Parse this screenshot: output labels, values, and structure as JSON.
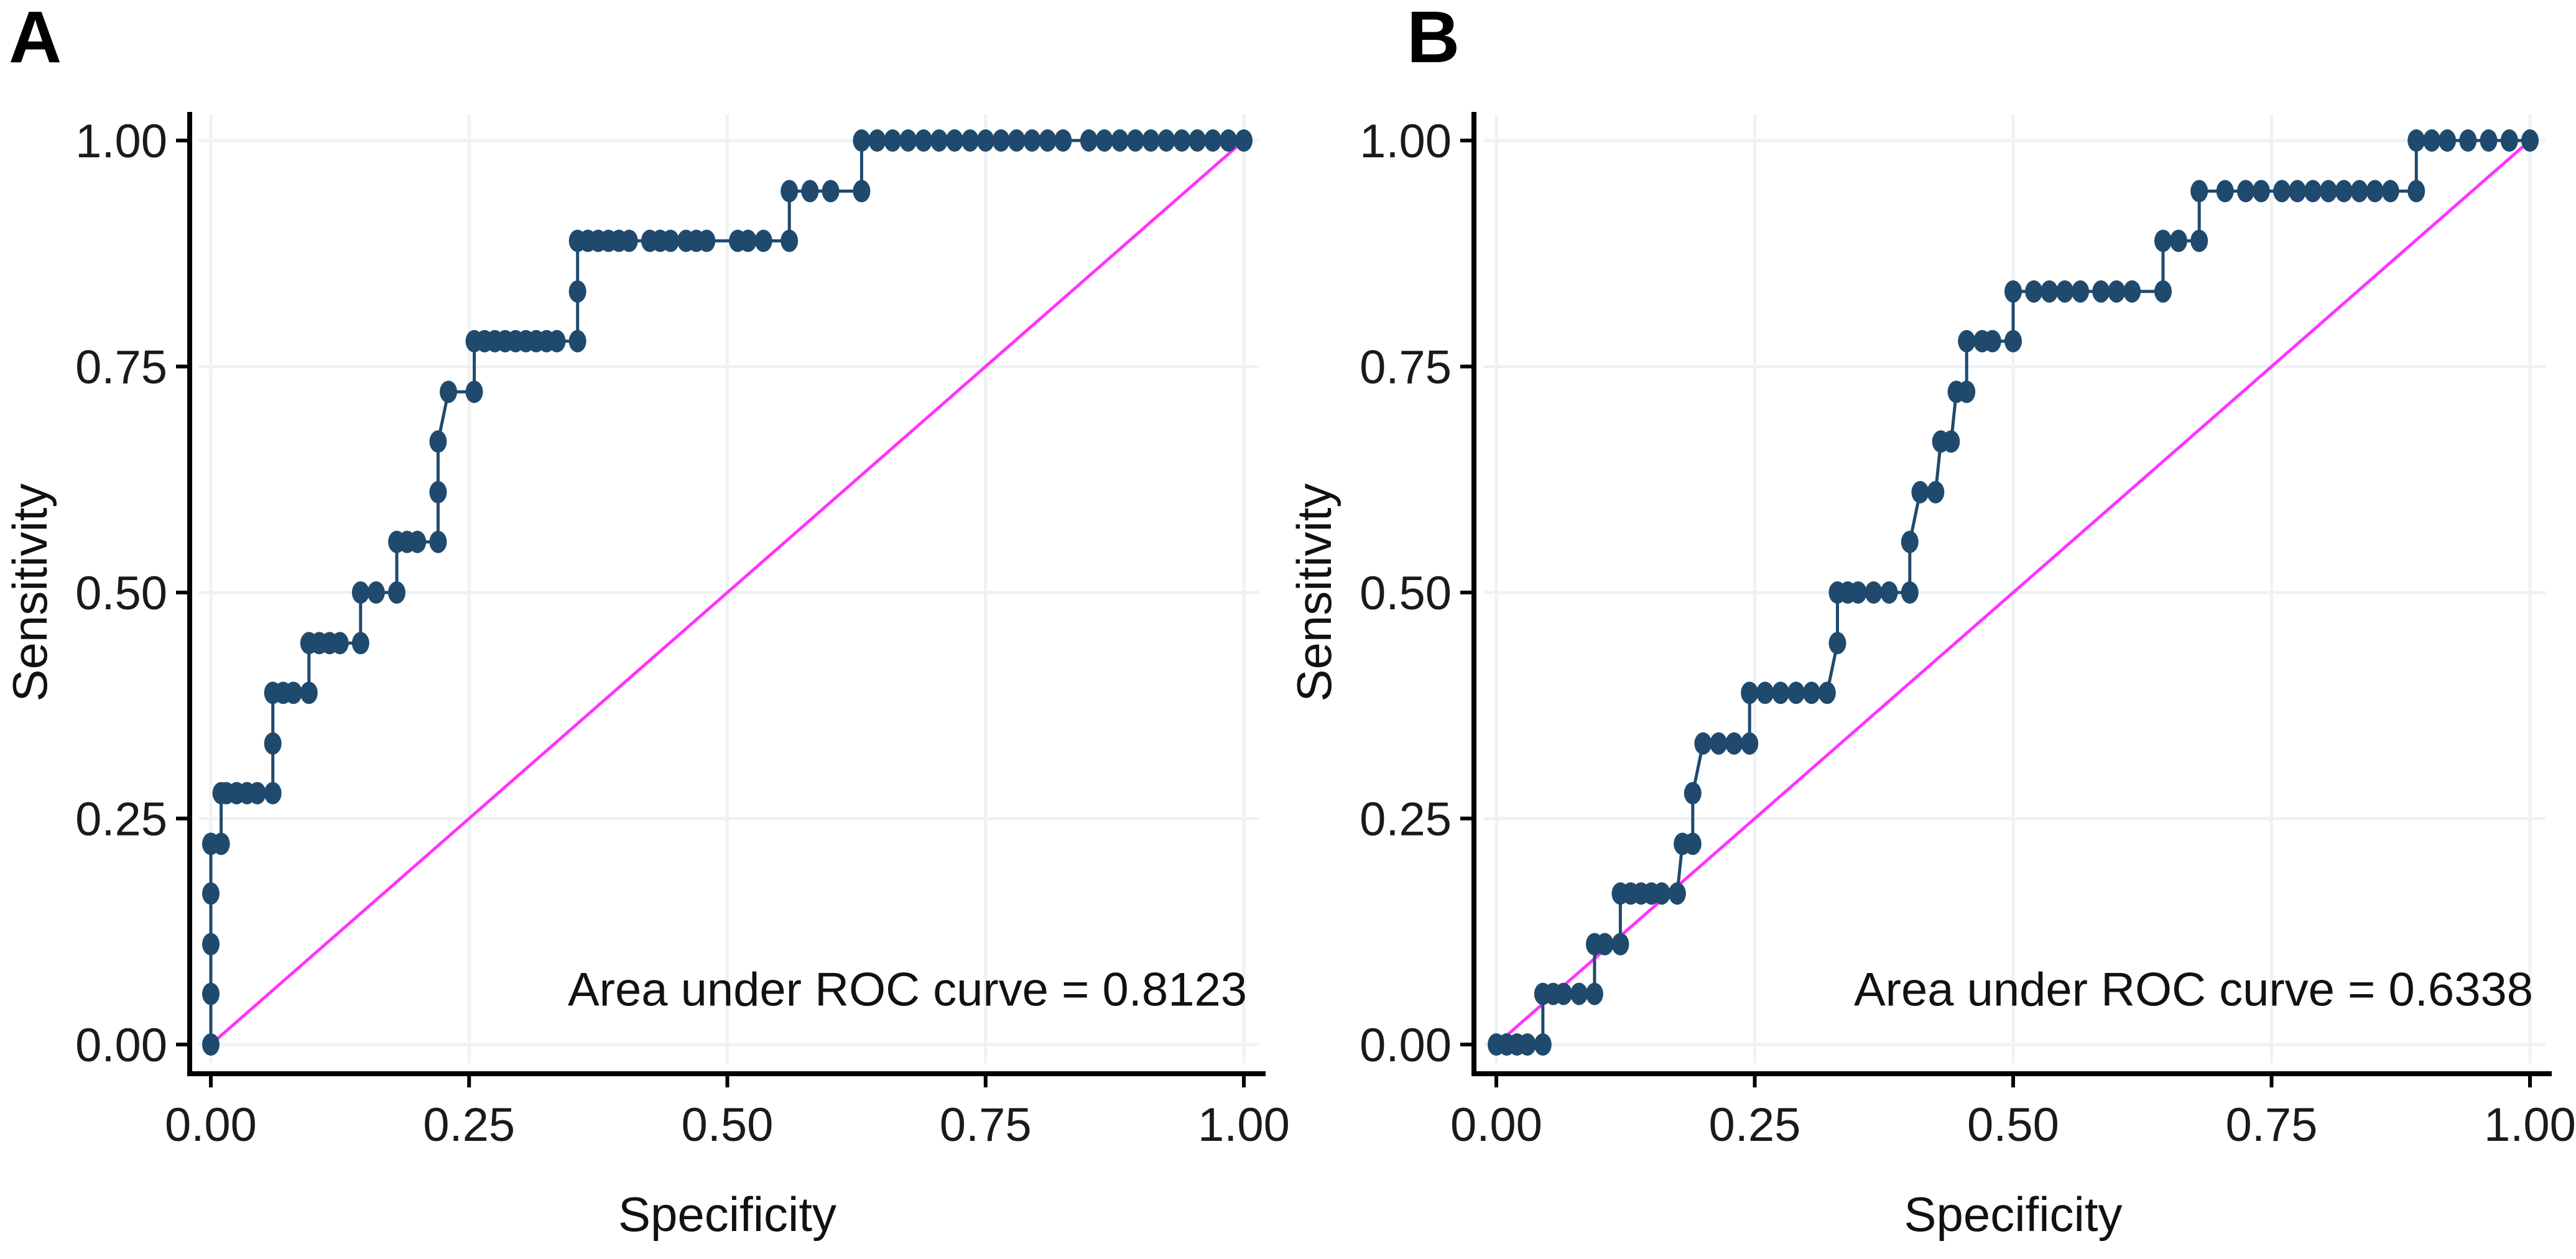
{
  "colors": {
    "curve": "#1f4a6e",
    "diagonal": "#ff33ff"
  },
  "chart_data": [
    {
      "panel": "A",
      "type": "line",
      "title": "",
      "xlabel": "Specificity",
      "ylabel": "Sensitivity",
      "xlim": [
        0,
        1
      ],
      "ylim": [
        0,
        1
      ],
      "xticks": [
        0,
        0.25,
        0.5,
        0.75,
        1
      ],
      "xtick_labels": [
        "0.00",
        "0.25",
        "0.50",
        "0.75",
        "1.00"
      ],
      "yticks": [
        0,
        0.25,
        0.5,
        0.75,
        1
      ],
      "ytick_labels": [
        "0.00",
        "0.25",
        "0.50",
        "0.75",
        "1.00"
      ],
      "grid": true,
      "annotation": "Area under ROC curve = 0.8123",
      "auc": 0.8123,
      "reference_line": {
        "from": [
          0,
          0
        ],
        "to": [
          1,
          1
        ]
      },
      "series": [
        {
          "name": "ROC",
          "x": [
            0,
            0,
            0,
            0,
            0,
            0,
            0.01,
            0.01,
            0.015,
            0.025,
            0.035,
            0.045,
            0.06,
            0.06,
            0.06,
            0.07,
            0.08,
            0.095,
            0.095,
            0.105,
            0.115,
            0.125,
            0.145,
            0.145,
            0.16,
            0.18,
            0.18,
            0.19,
            0.2,
            0.22,
            0.22,
            0.22,
            0.23,
            0.255,
            0.255,
            0.265,
            0.275,
            0.285,
            0.295,
            0.305,
            0.315,
            0.325,
            0.335,
            0.355,
            0.355,
            0.355,
            0.365,
            0.375,
            0.385,
            0.395,
            0.405,
            0.425,
            0.435,
            0.445,
            0.46,
            0.47,
            0.48,
            0.51,
            0.52,
            0.535,
            0.56,
            0.56,
            0.58,
            0.6,
            0.63,
            0.63,
            0.645,
            0.66,
            0.675,
            0.69,
            0.705,
            0.72,
            0.735,
            0.75,
            0.765,
            0.78,
            0.795,
            0.81,
            0.825,
            0.85,
            0.865,
            0.88,
            0.895,
            0.91,
            0.925,
            0.94,
            0.955,
            0.97,
            0.985,
            1
          ],
          "y": [
            0,
            0.056,
            0.111,
            0.167,
            0.222,
            0.222,
            0.222,
            0.278,
            0.278,
            0.278,
            0.278,
            0.278,
            0.278,
            0.333,
            0.389,
            0.389,
            0.389,
            0.389,
            0.444,
            0.444,
            0.444,
            0.444,
            0.444,
            0.5,
            0.5,
            0.5,
            0.556,
            0.556,
            0.556,
            0.556,
            0.611,
            0.667,
            0.722,
            0.722,
            0.778,
            0.778,
            0.778,
            0.778,
            0.778,
            0.778,
            0.778,
            0.778,
            0.778,
            0.778,
            0.833,
            0.889,
            0.889,
            0.889,
            0.889,
            0.889,
            0.889,
            0.889,
            0.889,
            0.889,
            0.889,
            0.889,
            0.889,
            0.889,
            0.889,
            0.889,
            0.889,
            0.944,
            0.944,
            0.944,
            0.944,
            1,
            1,
            1,
            1,
            1,
            1,
            1,
            1,
            1,
            1,
            1,
            1,
            1,
            1,
            1,
            1,
            1,
            1,
            1,
            1,
            1,
            1,
            1,
            1,
            1
          ]
        }
      ]
    },
    {
      "panel": "B",
      "type": "line",
      "title": "",
      "xlabel": "Specificity",
      "ylabel": "Sensitivity",
      "xlim": [
        0,
        1
      ],
      "ylim": [
        0,
        1
      ],
      "xticks": [
        0,
        0.25,
        0.5,
        0.75,
        1
      ],
      "xtick_labels": [
        "0.00",
        "0.25",
        "0.50",
        "0.75",
        "1.00"
      ],
      "yticks": [
        0,
        0.25,
        0.5,
        0.75,
        1
      ],
      "ytick_labels": [
        "0.00",
        "0.25",
        "0.50",
        "0.75",
        "1.00"
      ],
      "grid": true,
      "annotation": "Area under ROC curve = 0.6338",
      "auc": 0.6338,
      "reference_line": {
        "from": [
          0,
          0
        ],
        "to": [
          1,
          1
        ]
      },
      "series": [
        {
          "name": "ROC",
          "x": [
            0,
            0.01,
            0.02,
            0.03,
            0.045,
            0.045,
            0.055,
            0.065,
            0.08,
            0.095,
            0.095,
            0.105,
            0.12,
            0.12,
            0.13,
            0.14,
            0.15,
            0.16,
            0.175,
            0.18,
            0.19,
            0.19,
            0.2,
            0.215,
            0.23,
            0.245,
            0.245,
            0.26,
            0.275,
            0.29,
            0.305,
            0.32,
            0.33,
            0.33,
            0.34,
            0.35,
            0.365,
            0.38,
            0.4,
            0.4,
            0.41,
            0.425,
            0.43,
            0.44,
            0.445,
            0.455,
            0.455,
            0.47,
            0.48,
            0.5,
            0.5,
            0.52,
            0.535,
            0.55,
            0.565,
            0.585,
            0.6,
            0.615,
            0.645,
            0.645,
            0.66,
            0.68,
            0.68,
            0.705,
            0.725,
            0.74,
            0.76,
            0.775,
            0.79,
            0.805,
            0.82,
            0.835,
            0.85,
            0.865,
            0.89,
            0.89,
            0.905,
            0.92,
            0.94,
            0.96,
            0.98,
            1
          ],
          "y": [
            0,
            0,
            0,
            0,
            0,
            0.056,
            0.056,
            0.056,
            0.056,
            0.056,
            0.111,
            0.111,
            0.111,
            0.167,
            0.167,
            0.167,
            0.167,
            0.167,
            0.167,
            0.222,
            0.222,
            0.278,
            0.333,
            0.333,
            0.333,
            0.333,
            0.389,
            0.389,
            0.389,
            0.389,
            0.389,
            0.389,
            0.444,
            0.5,
            0.5,
            0.5,
            0.5,
            0.5,
            0.5,
            0.556,
            0.611,
            0.611,
            0.667,
            0.667,
            0.722,
            0.722,
            0.778,
            0.778,
            0.778,
            0.778,
            0.833,
            0.833,
            0.833,
            0.833,
            0.833,
            0.833,
            0.833,
            0.833,
            0.833,
            0.889,
            0.889,
            0.889,
            0.944,
            0.944,
            0.944,
            0.944,
            0.944,
            0.944,
            0.944,
            0.944,
            0.944,
            0.944,
            0.944,
            0.944,
            0.944,
            1,
            1,
            1,
            1,
            1,
            1,
            1
          ]
        }
      ]
    }
  ]
}
